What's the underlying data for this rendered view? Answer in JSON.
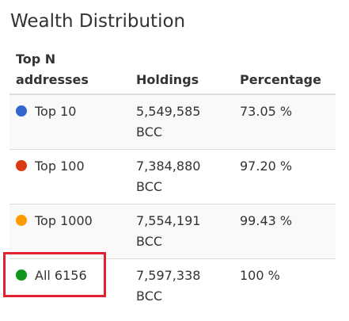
{
  "title": "Wealth Distribution",
  "table": {
    "header": [
      "Top N addresses",
      "Holdings",
      "Percentage"
    ],
    "rows": [
      [
        "Top 10",
        "5,549,585 BCC",
        "73.05 %"
      ],
      [
        "Top 100",
        "7,384,880 BCC",
        "97.20 %"
      ],
      [
        "Top 1000",
        "7,554,191 BCC",
        "99.43 %"
      ],
      [
        "All 6156",
        "7,597,338 BCC",
        "100 %"
      ]
    ]
  }
}
